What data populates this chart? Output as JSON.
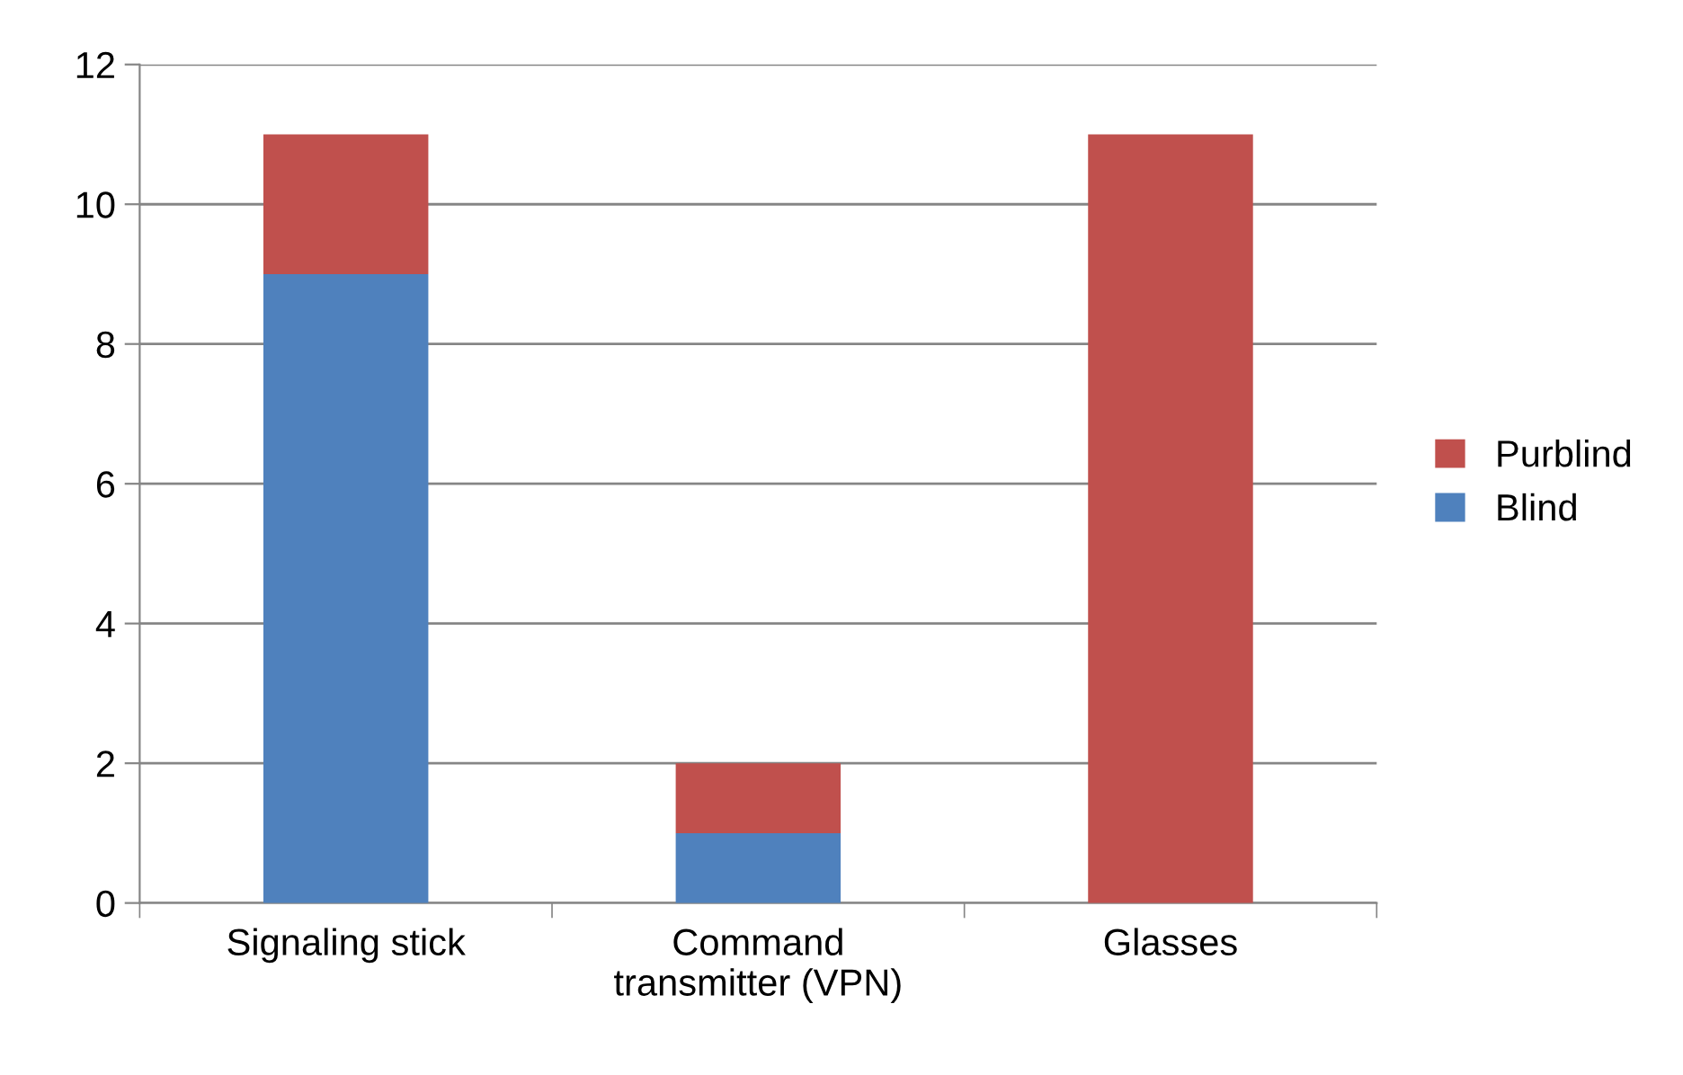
{
  "chart_data": {
    "type": "bar",
    "stacked": true,
    "categories": [
      "Signaling stick",
      "Command\ntransmitter (VPN)",
      "Glasses"
    ],
    "series": [
      {
        "name": "Blind",
        "color": "#4f81bd",
        "values": [
          9,
          1,
          0
        ]
      },
      {
        "name": "Purblind",
        "color": "#c0504d",
        "values": [
          2,
          1,
          11
        ]
      }
    ],
    "ylim": [
      0,
      12
    ],
    "yticks": [
      0,
      2,
      4,
      6,
      8,
      10,
      12
    ],
    "grid": "y",
    "legend": "right"
  }
}
